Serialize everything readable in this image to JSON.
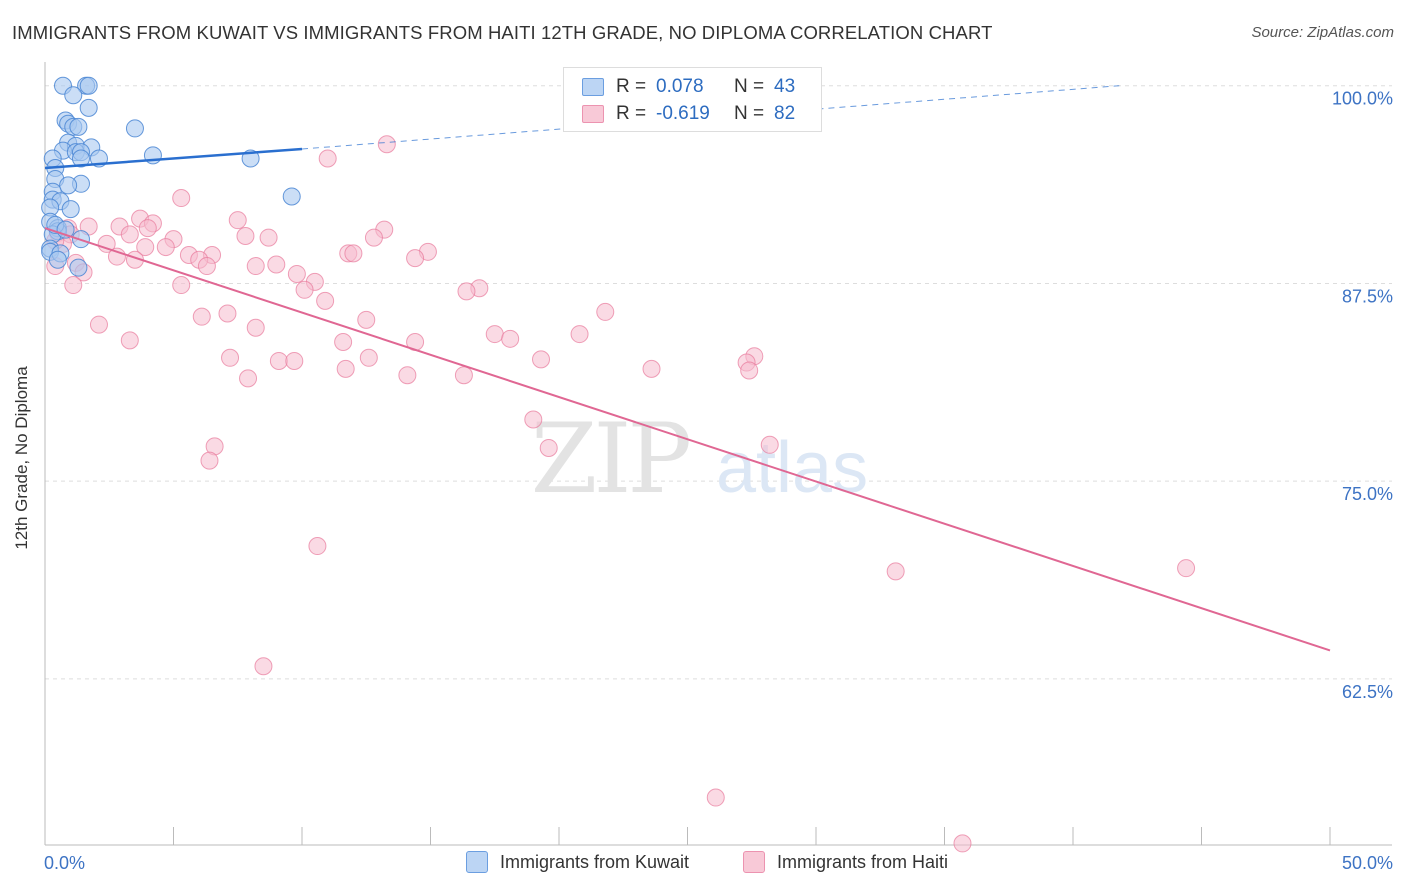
{
  "title": "IMMIGRANTS FROM KUWAIT VS IMMIGRANTS FROM HAITI 12TH GRADE, NO DIPLOMA CORRELATION CHART",
  "source": "Source: ZipAtlas.com",
  "watermark": {
    "zip": "ZIP",
    "atlas": "atlas"
  },
  "colors": {
    "kuwait_fill": "#a9c8f0",
    "kuwait_stroke": "#4a86d4",
    "kuwait_line": "#2a6fcf",
    "haiti_fill": "#f6bccd",
    "haiti_stroke": "#e8799b",
    "haiti_line": "#e06793",
    "tick_label": "#3d73c4",
    "grid": "#dddddd"
  },
  "legend": {
    "rows": [
      {
        "r_label": "R =",
        "r_value": "0.078",
        "n_label": "N =",
        "n_value": "43"
      },
      {
        "r_label": "R =",
        "r_value": "-0.619",
        "n_label": "N =",
        "n_value": "82"
      }
    ]
  },
  "bottom_legend": [
    "Immigrants from Kuwait",
    "Immigrants from Haiti"
  ],
  "chart_data": {
    "type": "scatter",
    "title": "IMMIGRANTS FROM KUWAIT VS IMMIGRANTS FROM HAITI 12TH GRADE, NO DIPLOMA CORRELATION CHART",
    "xlabel": "",
    "ylabel": "12th Grade, No Diploma",
    "xlim": [
      0,
      50
    ],
    "ylim": [
      52,
      101.5
    ],
    "x_tick_labels": [
      "0.0%",
      "50.0%"
    ],
    "y_ticks": [
      62.5,
      75.0,
      87.5,
      100.0
    ],
    "y_tick_labels": [
      "62.5%",
      "75.0%",
      "87.5%",
      "100.0%"
    ],
    "grid": "horizontal dashed",
    "legend_position": "top-center",
    "series": [
      {
        "name": "Immigrants from Kuwait",
        "r": 0.078,
        "n": 43,
        "trend": {
          "x": [
            0,
            10
          ],
          "y": [
            94.8,
            96.0
          ],
          "dashed_x": [
            10,
            41.8
          ],
          "dashed_y": [
            96.0,
            100.0
          ]
        },
        "points": [
          [
            0.7,
            100.0
          ],
          [
            1.6,
            100.0
          ],
          [
            1.7,
            100.0
          ],
          [
            1.1,
            99.4
          ],
          [
            1.7,
            98.6
          ],
          [
            0.8,
            97.8
          ],
          [
            0.9,
            97.6
          ],
          [
            1.1,
            97.4
          ],
          [
            1.3,
            97.4
          ],
          [
            3.5,
            97.3
          ],
          [
            0.9,
            96.4
          ],
          [
            1.2,
            96.2
          ],
          [
            1.8,
            96.1
          ],
          [
            0.7,
            95.9
          ],
          [
            1.2,
            95.8
          ],
          [
            1.4,
            95.8
          ],
          [
            4.2,
            95.6
          ],
          [
            1.4,
            95.4
          ],
          [
            0.3,
            95.4
          ],
          [
            2.1,
            95.4
          ],
          [
            8.0,
            95.4
          ],
          [
            0.4,
            94.8
          ],
          [
            0.4,
            94.1
          ],
          [
            1.4,
            93.8
          ],
          [
            0.9,
            93.7
          ],
          [
            0.3,
            93.3
          ],
          [
            9.6,
            93.0
          ],
          [
            0.3,
            92.8
          ],
          [
            0.6,
            92.7
          ],
          [
            0.2,
            92.3
          ],
          [
            1.0,
            92.2
          ],
          [
            0.2,
            91.4
          ],
          [
            0.5,
            91.0
          ],
          [
            0.5,
            90.8
          ],
          [
            0.3,
            90.6
          ],
          [
            1.4,
            90.3
          ],
          [
            0.2,
            89.7
          ],
          [
            0.2,
            89.5
          ],
          [
            0.6,
            89.4
          ],
          [
            0.5,
            89.0
          ],
          [
            1.3,
            88.5
          ],
          [
            0.4,
            91.2
          ],
          [
            0.8,
            90.9
          ]
        ]
      },
      {
        "name": "Immigrants from Haiti",
        "r": -0.619,
        "n": 82,
        "trend": {
          "x": [
            0,
            50
          ],
          "y": [
            91.0,
            64.3
          ]
        },
        "points": [
          [
            13.3,
            96.3
          ],
          [
            11.0,
            95.4
          ],
          [
            5.3,
            92.9
          ],
          [
            3.7,
            91.6
          ],
          [
            7.5,
            91.5
          ],
          [
            4.2,
            91.3
          ],
          [
            2.9,
            91.1
          ],
          [
            1.7,
            91.1
          ],
          [
            0.9,
            91.0
          ],
          [
            4.0,
            91.0
          ],
          [
            13.2,
            90.9
          ],
          [
            0.5,
            90.7
          ],
          [
            1.0,
            90.6
          ],
          [
            3.3,
            90.6
          ],
          [
            7.8,
            90.5
          ],
          [
            8.7,
            90.4
          ],
          [
            12.8,
            90.4
          ],
          [
            5.0,
            90.3
          ],
          [
            2.4,
            90.0
          ],
          [
            0.7,
            90.0
          ],
          [
            3.9,
            89.8
          ],
          [
            4.7,
            89.8
          ],
          [
            14.9,
            89.5
          ],
          [
            11.8,
            89.4
          ],
          [
            12.0,
            89.4
          ],
          [
            5.6,
            89.3
          ],
          [
            6.5,
            89.3
          ],
          [
            2.8,
            89.2
          ],
          [
            14.4,
            89.1
          ],
          [
            6.0,
            89.0
          ],
          [
            3.5,
            89.0
          ],
          [
            1.2,
            88.8
          ],
          [
            9.0,
            88.7
          ],
          [
            8.2,
            88.6
          ],
          [
            6.3,
            88.6
          ],
          [
            1.5,
            88.2
          ],
          [
            9.8,
            88.1
          ],
          [
            10.5,
            87.6
          ],
          [
            1.1,
            87.4
          ],
          [
            5.3,
            87.4
          ],
          [
            10.1,
            87.1
          ],
          [
            16.9,
            87.2
          ],
          [
            16.4,
            87.0
          ],
          [
            10.9,
            86.4
          ],
          [
            21.8,
            85.7
          ],
          [
            7.1,
            85.6
          ],
          [
            6.1,
            85.4
          ],
          [
            12.5,
            85.2
          ],
          [
            2.1,
            84.9
          ],
          [
            8.2,
            84.7
          ],
          [
            17.5,
            84.3
          ],
          [
            20.8,
            84.3
          ],
          [
            18.1,
            84.0
          ],
          [
            3.3,
            83.9
          ],
          [
            11.6,
            83.8
          ],
          [
            14.4,
            83.8
          ],
          [
            27.6,
            82.9
          ],
          [
            7.2,
            82.8
          ],
          [
            12.6,
            82.8
          ],
          [
            19.3,
            82.7
          ],
          [
            9.1,
            82.6
          ],
          [
            9.7,
            82.6
          ],
          [
            27.3,
            82.5
          ],
          [
            11.7,
            82.1
          ],
          [
            23.6,
            82.1
          ],
          [
            27.4,
            82.0
          ],
          [
            16.3,
            81.7
          ],
          [
            14.1,
            81.7
          ],
          [
            7.9,
            81.5
          ],
          [
            19.0,
            78.9
          ],
          [
            28.2,
            77.3
          ],
          [
            6.6,
            77.2
          ],
          [
            19.6,
            77.1
          ],
          [
            6.4,
            76.3
          ],
          [
            10.6,
            70.9
          ],
          [
            33.1,
            69.3
          ],
          [
            44.4,
            69.5
          ],
          [
            8.5,
            63.3
          ],
          [
            26.1,
            55.0
          ],
          [
            35.7,
            52.1
          ],
          [
            0.4,
            88.6
          ],
          [
            0.4,
            90.2
          ]
        ]
      }
    ]
  }
}
